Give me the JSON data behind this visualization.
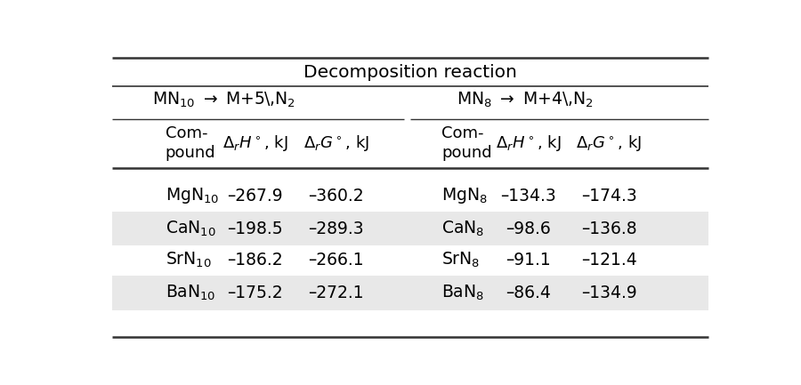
{
  "title": "Decomposition reaction",
  "sec1_label": "MN$_{10}$ $\\rightarrow$ M+5\\,N$_2$",
  "sec2_label": "MN$_8$ $\\rightarrow$ M+4\\,N$_2$",
  "col_header_left": "Com-\npound",
  "col_header_dH": "$\\Delta_r H^\\circ$, kJ",
  "col_header_dG": "$\\Delta_r G^\\circ$, kJ",
  "rows": [
    [
      "MgN$_{10}$",
      "–267.9",
      "–360.2",
      "MgN$_8$",
      "–134.3",
      "–174.3"
    ],
    [
      "CaN$_{10}$",
      "–198.5",
      "–289.3",
      "CaN$_8$",
      "–98.6",
      "–136.8"
    ],
    [
      "SrN$_{10}$",
      "–186.2",
      "–266.1",
      "SrN$_8$",
      "–91.1",
      "–121.4"
    ],
    [
      "BaN$_{10}$",
      "–175.2",
      "–272.1",
      "BaN$_8$",
      "–86.4",
      "–134.9"
    ]
  ],
  "shaded_rows": [
    1,
    3
  ],
  "shade_color": "#e8e8e8",
  "bg_color": "#ffffff",
  "figsize": [
    9.0,
    4.33
  ],
  "dpi": 100
}
